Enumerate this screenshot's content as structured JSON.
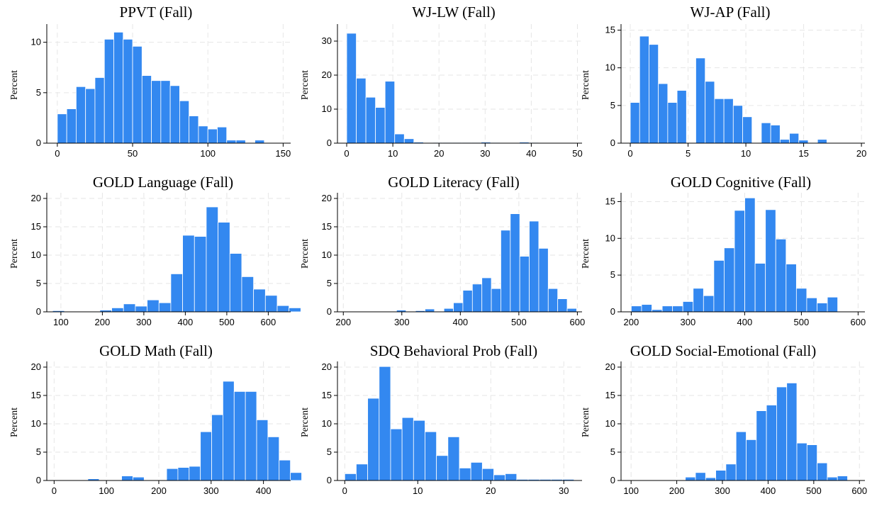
{
  "style": {
    "bar_color": "#3388f0"
  },
  "chart_data": [
    {
      "type": "bar",
      "title": "PPVT (Fall)",
      "ylabel": "Percent",
      "xlim": [
        -7,
        155
      ],
      "ylim": [
        0,
        11.8
      ],
      "xticks": [
        0,
        50,
        100,
        150
      ],
      "yticks": [
        0,
        5,
        10
      ],
      "bin_start": 0,
      "bin_width": 6.25,
      "values": [
        2.9,
        3.4,
        5.6,
        5.4,
        6.5,
        10.3,
        11.0,
        10.3,
        9.6,
        6.7,
        6.2,
        6.2,
        5.7,
        4.2,
        2.7,
        1.7,
        1.4,
        1.6,
        0.3,
        0.3,
        0.0,
        0.3,
        0.0,
        0.0
      ]
    },
    {
      "type": "bar",
      "title": "WJ-LW (Fall)",
      "ylabel": "Percent",
      "xlim": [
        -2,
        51
      ],
      "ylim": [
        0,
        35
      ],
      "xticks": [
        0,
        10,
        20,
        30,
        40,
        50
      ],
      "yticks": [
        0,
        10,
        20,
        30
      ],
      "bin_start": 0,
      "bin_width": 2.08,
      "values": [
        32.3,
        19.1,
        13.5,
        10.5,
        18.2,
        2.7,
        1.3,
        0.3,
        0.0,
        0.2,
        0.2,
        0.2,
        0.2,
        0.2,
        0.3,
        0.2,
        0.1,
        0.1,
        0.3,
        0.2,
        0.1,
        0.1,
        0.1,
        0.0
      ]
    },
    {
      "type": "bar",
      "title": "WJ-AP (Fall)",
      "ylabel": "Percent",
      "xlim": [
        -0.8,
        20.3
      ],
      "ylim": [
        0,
        15.8
      ],
      "xticks": [
        0,
        5,
        10,
        15,
        20
      ],
      "yticks": [
        0,
        5,
        10,
        15
      ],
      "bin_start": 0,
      "bin_width": 0.81,
      "values": [
        5.4,
        14.2,
        13.1,
        7.9,
        5.4,
        7.0,
        0.0,
        11.3,
        8.2,
        5.9,
        5.9,
        5.0,
        3.5,
        0.0,
        2.7,
        2.4,
        0.5,
        1.3,
        0.4,
        0.0,
        0.5,
        0.0
      ]
    },
    {
      "type": "bar",
      "title": "GOLD Language (Fall)",
      "ylabel": "Percent",
      "xlim": [
        66,
        654
      ],
      "ylim": [
        0,
        21
      ],
      "xticks": [
        100,
        200,
        300,
        400,
        500,
        600
      ],
      "yticks": [
        0,
        5,
        10,
        15,
        20
      ],
      "bin_start": 80,
      "bin_width": 28.5,
      "values": [
        0.2,
        0.0,
        0.0,
        0.1,
        0.3,
        0.7,
        1.4,
        1.0,
        2.1,
        1.6,
        6.7,
        13.5,
        13.3,
        18.5,
        15.8,
        10.3,
        6.2,
        4.0,
        2.9,
        1.1,
        0.7
      ]
    },
    {
      "type": "bar",
      "title": "GOLD Literacy (Fall)",
      "ylabel": "Percent",
      "xlim": [
        190,
        608
      ],
      "ylim": [
        0,
        21
      ],
      "xticks": [
        200,
        300,
        400,
        500,
        600
      ],
      "yticks": [
        0,
        5,
        10,
        15,
        20
      ],
      "bin_start": 210,
      "bin_width": 16.2,
      "values": [
        0.0,
        0.0,
        0.0,
        0.0,
        0.0,
        0.3,
        0.0,
        0.2,
        0.5,
        0.1,
        0.6,
        1.6,
        3.8,
        4.9,
        6.0,
        4.1,
        14.4,
        17.3,
        9.8,
        16.0,
        11.2,
        4.1,
        2.3,
        0.6
      ]
    },
    {
      "type": "bar",
      "title": "GOLD Cognitive (Fall)",
      "ylabel": "Percent",
      "xlim": [
        182,
        612
      ],
      "ylim": [
        0,
        16.2
      ],
      "xticks": [
        200,
        300,
        400,
        500,
        600
      ],
      "yticks": [
        0,
        5,
        10,
        15
      ],
      "bin_start": 200,
      "bin_width": 18.2,
      "values": [
        0.8,
        1.0,
        0.3,
        0.8,
        0.8,
        1.4,
        3.2,
        2.2,
        7.0,
        8.7,
        13.8,
        15.5,
        6.6,
        13.9,
        9.9,
        6.5,
        3.2,
        1.9,
        1.2,
        2.0
      ]
    },
    {
      "type": "bar",
      "title": "GOLD Math (Fall)",
      "ylabel": "Percent",
      "xlim": [
        -14,
        452
      ],
      "ylim": [
        0,
        21
      ],
      "xticks": [
        0,
        100,
        200,
        300,
        400
      ],
      "yticks": [
        0,
        5,
        10,
        15,
        20
      ],
      "bin_start": 0,
      "bin_width": 21.5,
      "values": [
        0.0,
        0.0,
        0.0,
        0.3,
        0.0,
        0.0,
        0.8,
        0.6,
        0.0,
        0.0,
        2.1,
        2.3,
        2.5,
        8.6,
        11.6,
        17.5,
        15.7,
        15.7,
        10.7,
        7.7,
        3.6,
        1.4
      ]
    },
    {
      "type": "bar",
      "title": "SDQ Behavioral Prob (Fall)",
      "ylabel": "Percent",
      "xlim": [
        -1,
        32.5
      ],
      "ylim": [
        0,
        21
      ],
      "xticks": [
        0,
        10,
        20,
        30
      ],
      "yticks": [
        0,
        5,
        10,
        15,
        20
      ],
      "bin_start": 0,
      "bin_width": 1.57,
      "values": [
        1.2,
        2.9,
        14.5,
        20.1,
        9.1,
        11.1,
        10.6,
        8.6,
        4.4,
        7.7,
        2.2,
        3.2,
        2.1,
        1.0,
        1.2,
        0.2,
        0.2,
        0.2,
        0.2,
        0.2
      ]
    },
    {
      "type": "bar",
      "title": "GOLD Social-Emotional (Fall)",
      "ylabel": "Percent",
      "xlim": [
        78,
        612
      ],
      "ylim": [
        0,
        21
      ],
      "xticks": [
        100,
        200,
        300,
        400,
        500,
        600
      ],
      "yticks": [
        0,
        5,
        10,
        15,
        20
      ],
      "bin_start": 130,
      "bin_width": 22.2,
      "values": [
        0.0,
        0.1,
        0.1,
        0.0,
        0.6,
        1.4,
        0.5,
        1.8,
        2.9,
        8.6,
        7.2,
        12.3,
        13.3,
        16.5,
        17.2,
        6.6,
        6.3,
        3.1,
        0.6,
        0.8
      ]
    }
  ]
}
